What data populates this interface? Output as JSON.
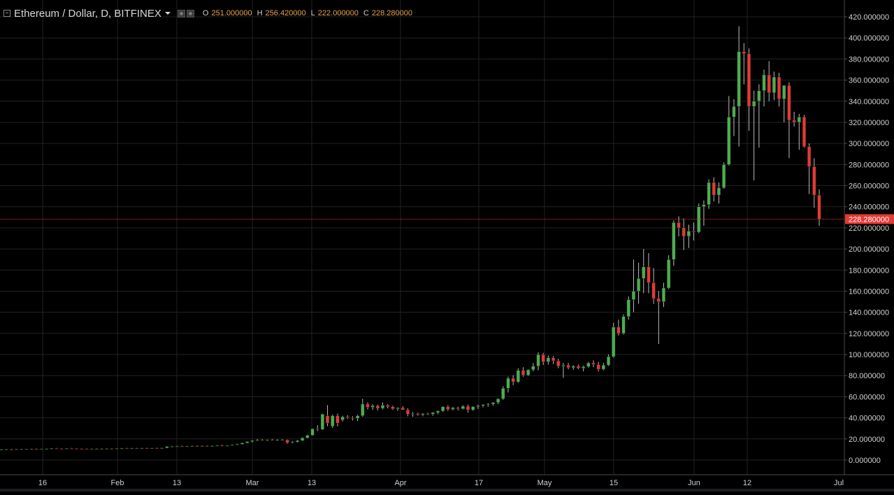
{
  "header": {
    "title": "Ethereum / Dollar, D, BITFINEX",
    "ohlc": [
      {
        "key": "O",
        "value": "251.000000"
      },
      {
        "key": "H",
        "value": "256.420000"
      },
      {
        "key": "L",
        "value": "222.000000"
      },
      {
        "key": "C",
        "value": "228.280000"
      }
    ]
  },
  "colors": {
    "background": "#000000",
    "up": "#4caf50",
    "down": "#e53935",
    "grid": "#222222",
    "axis_text": "#d0d0d0",
    "price_line": "#e53935"
  },
  "chart_data": {
    "type": "candlestick",
    "symbol": "Ethereum / Dollar",
    "interval": "D",
    "exchange": "BITFINEX",
    "x_tick_labels": [
      "16",
      "Feb",
      "13",
      "Mar",
      "13",
      "Apr",
      "17",
      "May",
      "15",
      "Jun",
      "12",
      "Jul"
    ],
    "y_tick_labels": [
      "0.000000",
      "20.000000",
      "40.000000",
      "60.000000",
      "80.000000",
      "100.000000",
      "120.000000",
      "140.000000",
      "160.000000",
      "180.000000",
      "200.000000",
      "220.000000",
      "240.000000",
      "260.000000",
      "280.000000",
      "300.000000",
      "320.000000",
      "340.000000",
      "360.000000",
      "380.000000",
      "400.000000",
      "420.000000"
    ],
    "ylim": [
      -20,
      430
    ],
    "grid": true,
    "last_price": 228.28,
    "last_price_label": "228.280000",
    "candles": [
      {
        "o": 10.0,
        "h": 10.4,
        "l": 9.7,
        "c": 10.1
      },
      {
        "o": 10.1,
        "h": 10.5,
        "l": 9.8,
        "c": 10.2
      },
      {
        "o": 10.2,
        "h": 10.6,
        "l": 9.9,
        "c": 10.0
      },
      {
        "o": 10.0,
        "h": 10.5,
        "l": 9.8,
        "c": 10.3
      },
      {
        "o": 10.3,
        "h": 10.7,
        "l": 10.0,
        "c": 10.2
      },
      {
        "o": 10.2,
        "h": 10.6,
        "l": 9.9,
        "c": 10.4
      },
      {
        "o": 10.4,
        "h": 10.8,
        "l": 10.1,
        "c": 10.5
      },
      {
        "o": 10.5,
        "h": 10.9,
        "l": 10.2,
        "c": 10.4
      },
      {
        "o": 10.4,
        "h": 10.8,
        "l": 10.1,
        "c": 10.6
      },
      {
        "o": 10.6,
        "h": 11.0,
        "l": 10.3,
        "c": 10.7
      },
      {
        "o": 10.7,
        "h": 11.3,
        "l": 10.4,
        "c": 11.0
      },
      {
        "o": 11.0,
        "h": 11.4,
        "l": 10.6,
        "c": 10.9
      },
      {
        "o": 10.9,
        "h": 11.3,
        "l": 10.6,
        "c": 10.8
      },
      {
        "o": 10.8,
        "h": 11.2,
        "l": 10.5,
        "c": 11.0
      },
      {
        "o": 11.0,
        "h": 11.4,
        "l": 10.7,
        "c": 10.9
      },
      {
        "o": 10.9,
        "h": 11.2,
        "l": 10.6,
        "c": 10.7
      },
      {
        "o": 10.7,
        "h": 11.1,
        "l": 10.4,
        "c": 10.6
      },
      {
        "o": 10.6,
        "h": 11.0,
        "l": 10.3,
        "c": 10.5
      },
      {
        "o": 10.5,
        "h": 10.9,
        "l": 10.2,
        "c": 10.7
      },
      {
        "o": 10.7,
        "h": 11.1,
        "l": 10.4,
        "c": 10.8
      },
      {
        "o": 10.8,
        "h": 11.2,
        "l": 10.5,
        "c": 10.7
      },
      {
        "o": 10.7,
        "h": 11.1,
        "l": 10.4,
        "c": 10.9
      },
      {
        "o": 10.9,
        "h": 11.3,
        "l": 10.6,
        "c": 10.8
      },
      {
        "o": 10.8,
        "h": 11.2,
        "l": 10.5,
        "c": 11.0
      },
      {
        "o": 11.0,
        "h": 11.4,
        "l": 10.7,
        "c": 11.1
      },
      {
        "o": 11.1,
        "h": 11.5,
        "l": 10.8,
        "c": 11.0
      },
      {
        "o": 11.0,
        "h": 11.4,
        "l": 10.7,
        "c": 11.2
      },
      {
        "o": 11.2,
        "h": 11.6,
        "l": 10.9,
        "c": 11.1
      },
      {
        "o": 11.1,
        "h": 11.5,
        "l": 10.8,
        "c": 11.3
      },
      {
        "o": 11.3,
        "h": 11.7,
        "l": 11.0,
        "c": 11.2
      },
      {
        "o": 11.2,
        "h": 11.6,
        "l": 10.9,
        "c": 11.4
      },
      {
        "o": 11.4,
        "h": 11.9,
        "l": 11.1,
        "c": 11.3
      },
      {
        "o": 11.3,
        "h": 11.8,
        "l": 11.0,
        "c": 11.5
      },
      {
        "o": 11.5,
        "h": 13.2,
        "l": 11.2,
        "c": 12.8
      },
      {
        "o": 12.8,
        "h": 13.4,
        "l": 12.3,
        "c": 12.9
      },
      {
        "o": 12.9,
        "h": 13.5,
        "l": 12.4,
        "c": 13.0
      },
      {
        "o": 13.0,
        "h": 13.6,
        "l": 12.5,
        "c": 12.9
      },
      {
        "o": 12.9,
        "h": 13.5,
        "l": 12.4,
        "c": 13.1
      },
      {
        "o": 13.1,
        "h": 13.7,
        "l": 12.6,
        "c": 13.3
      },
      {
        "o": 13.3,
        "h": 13.9,
        "l": 12.8,
        "c": 13.2
      },
      {
        "o": 13.2,
        "h": 13.8,
        "l": 12.7,
        "c": 13.4
      },
      {
        "o": 13.4,
        "h": 14.0,
        "l": 12.9,
        "c": 13.3
      },
      {
        "o": 13.3,
        "h": 13.9,
        "l": 12.8,
        "c": 13.5
      },
      {
        "o": 13.5,
        "h": 14.2,
        "l": 13.0,
        "c": 13.8
      },
      {
        "o": 13.8,
        "h": 14.5,
        "l": 13.2,
        "c": 13.6
      },
      {
        "o": 13.6,
        "h": 14.3,
        "l": 13.0,
        "c": 14.0
      },
      {
        "o": 14.0,
        "h": 14.8,
        "l": 13.5,
        "c": 14.5
      },
      {
        "o": 14.5,
        "h": 15.5,
        "l": 14.0,
        "c": 15.0
      },
      {
        "o": 15.0,
        "h": 16.5,
        "l": 14.6,
        "c": 16.2
      },
      {
        "o": 16.2,
        "h": 17.8,
        "l": 15.8,
        "c": 17.5
      },
      {
        "o": 17.5,
        "h": 19.0,
        "l": 16.8,
        "c": 18.5
      },
      {
        "o": 18.5,
        "h": 19.8,
        "l": 17.8,
        "c": 19.0
      },
      {
        "o": 19.0,
        "h": 19.8,
        "l": 18.2,
        "c": 18.7
      },
      {
        "o": 18.7,
        "h": 19.5,
        "l": 18.0,
        "c": 19.2
      },
      {
        "o": 19.2,
        "h": 20.0,
        "l": 18.5,
        "c": 18.8
      },
      {
        "o": 18.8,
        "h": 19.6,
        "l": 18.0,
        "c": 19.0
      },
      {
        "o": 19.0,
        "h": 19.8,
        "l": 18.2,
        "c": 18.5
      },
      {
        "o": 19.0,
        "h": 19.5,
        "l": 15.5,
        "c": 16.5
      },
      {
        "o": 16.5,
        "h": 17.8,
        "l": 15.8,
        "c": 17.2
      },
      {
        "o": 17.2,
        "h": 19.0,
        "l": 16.5,
        "c": 18.5
      },
      {
        "o": 18.5,
        "h": 21.5,
        "l": 18.0,
        "c": 21.0
      },
      {
        "o": 21.0,
        "h": 24.0,
        "l": 20.5,
        "c": 23.5
      },
      {
        "o": 23.5,
        "h": 30.0,
        "l": 23.0,
        "c": 29.5
      },
      {
        "o": 29.5,
        "h": 33.0,
        "l": 27.5,
        "c": 29.0
      },
      {
        "o": 29.0,
        "h": 44.0,
        "l": 28.5,
        "c": 43.5
      },
      {
        "o": 42.0,
        "h": 52.0,
        "l": 32.0,
        "c": 35.0
      },
      {
        "o": 32.0,
        "h": 43.0,
        "l": 30.5,
        "c": 42.0
      },
      {
        "o": 42.0,
        "h": 44.0,
        "l": 32.0,
        "c": 35.0
      },
      {
        "o": 38.0,
        "h": 42.0,
        "l": 36.5,
        "c": 41.0
      },
      {
        "o": 41.0,
        "h": 42.5,
        "l": 39.0,
        "c": 40.0
      },
      {
        "o": 40.0,
        "h": 41.5,
        "l": 37.5,
        "c": 39.5
      },
      {
        "o": 39.5,
        "h": 43.0,
        "l": 37.0,
        "c": 42.0
      },
      {
        "o": 42.0,
        "h": 58.0,
        "l": 41.0,
        "c": 53.0
      },
      {
        "o": 53.0,
        "h": 54.5,
        "l": 48.0,
        "c": 50.0
      },
      {
        "o": 50.0,
        "h": 53.0,
        "l": 47.5,
        "c": 51.5
      },
      {
        "o": 51.5,
        "h": 52.5,
        "l": 47.0,
        "c": 49.0
      },
      {
        "o": 49.0,
        "h": 54.5,
        "l": 48.0,
        "c": 52.0
      },
      {
        "o": 52.0,
        "h": 53.0,
        "l": 49.0,
        "c": 50.5
      },
      {
        "o": 50.5,
        "h": 51.5,
        "l": 47.5,
        "c": 48.5
      },
      {
        "o": 48.5,
        "h": 50.0,
        "l": 46.5,
        "c": 49.5
      },
      {
        "o": 49.5,
        "h": 51.0,
        "l": 48.0,
        "c": 47.5
      },
      {
        "o": 47.5,
        "h": 49.0,
        "l": 41.5,
        "c": 43.5
      },
      {
        "o": 43.5,
        "h": 45.5,
        "l": 41.0,
        "c": 44.0
      },
      {
        "o": 44.0,
        "h": 45.0,
        "l": 42.0,
        "c": 43.0
      },
      {
        "o": 43.0,
        "h": 44.5,
        "l": 41.5,
        "c": 44.0
      },
      {
        "o": 44.0,
        "h": 45.0,
        "l": 42.5,
        "c": 43.5
      },
      {
        "o": 43.5,
        "h": 45.5,
        "l": 42.0,
        "c": 45.0
      },
      {
        "o": 45.0,
        "h": 47.0,
        "l": 43.5,
        "c": 46.5
      },
      {
        "o": 46.5,
        "h": 51.0,
        "l": 45.5,
        "c": 50.5
      },
      {
        "o": 50.5,
        "h": 52.0,
        "l": 46.5,
        "c": 48.0
      },
      {
        "o": 48.0,
        "h": 50.5,
        "l": 47.0,
        "c": 49.5
      },
      {
        "o": 49.5,
        "h": 50.5,
        "l": 47.0,
        "c": 48.5
      },
      {
        "o": 48.5,
        "h": 52.0,
        "l": 48.0,
        "c": 51.0
      },
      {
        "o": 51.0,
        "h": 52.5,
        "l": 45.0,
        "c": 47.5
      },
      {
        "o": 47.5,
        "h": 51.0,
        "l": 46.5,
        "c": 50.5
      },
      {
        "o": 50.5,
        "h": 52.5,
        "l": 48.5,
        "c": 51.5
      },
      {
        "o": 51.5,
        "h": 53.0,
        "l": 50.0,
        "c": 52.5
      },
      {
        "o": 52.5,
        "h": 54.0,
        "l": 50.5,
        "c": 53.0
      },
      {
        "o": 53.0,
        "h": 55.0,
        "l": 51.5,
        "c": 54.5
      },
      {
        "o": 54.5,
        "h": 58.5,
        "l": 53.0,
        "c": 58.0
      },
      {
        "o": 58.0,
        "h": 70.0,
        "l": 57.0,
        "c": 68.0
      },
      {
        "o": 68.0,
        "h": 79.0,
        "l": 64.0,
        "c": 77.5
      },
      {
        "o": 77.5,
        "h": 80.5,
        "l": 71.0,
        "c": 74.0
      },
      {
        "o": 74.0,
        "h": 87.0,
        "l": 73.0,
        "c": 85.0
      },
      {
        "o": 85.0,
        "h": 88.0,
        "l": 79.0,
        "c": 80.5
      },
      {
        "o": 80.5,
        "h": 86.0,
        "l": 79.5,
        "c": 85.5
      },
      {
        "o": 85.5,
        "h": 92.0,
        "l": 84.0,
        "c": 89.0
      },
      {
        "o": 89.0,
        "h": 102.0,
        "l": 85.0,
        "c": 100.0
      },
      {
        "o": 100.0,
        "h": 101.5,
        "l": 90.0,
        "c": 93.0
      },
      {
        "o": 93.0,
        "h": 99.0,
        "l": 90.5,
        "c": 97.0
      },
      {
        "o": 97.0,
        "h": 98.5,
        "l": 91.0,
        "c": 94.0
      },
      {
        "o": 94.0,
        "h": 96.0,
        "l": 87.0,
        "c": 89.0
      },
      {
        "o": 89.0,
        "h": 92.0,
        "l": 78.0,
        "c": 90.0
      },
      {
        "o": 90.0,
        "h": 92.0,
        "l": 86.0,
        "c": 87.5
      },
      {
        "o": 87.5,
        "h": 90.0,
        "l": 85.5,
        "c": 89.0
      },
      {
        "o": 89.0,
        "h": 90.5,
        "l": 86.0,
        "c": 87.0
      },
      {
        "o": 87.0,
        "h": 89.5,
        "l": 84.0,
        "c": 88.5
      },
      {
        "o": 88.5,
        "h": 93.0,
        "l": 87.5,
        "c": 92.0
      },
      {
        "o": 92.0,
        "h": 94.5,
        "l": 88.0,
        "c": 90.5
      },
      {
        "o": 90.5,
        "h": 93.0,
        "l": 84.0,
        "c": 86.0
      },
      {
        "o": 86.0,
        "h": 92.0,
        "l": 85.0,
        "c": 90.0
      },
      {
        "o": 90.0,
        "h": 100.0,
        "l": 89.0,
        "c": 98.0
      },
      {
        "o": 98.0,
        "h": 130.0,
        "l": 97.0,
        "c": 126.0
      },
      {
        "o": 126.0,
        "h": 133.0,
        "l": 118.0,
        "c": 120.0
      },
      {
        "o": 120.0,
        "h": 138.0,
        "l": 119.0,
        "c": 136.0
      },
      {
        "o": 136.0,
        "h": 155.0,
        "l": 133.0,
        "c": 152.0
      },
      {
        "o": 152.0,
        "h": 190.0,
        "l": 140.0,
        "c": 160.0
      },
      {
        "o": 160.0,
        "h": 187.0,
        "l": 148.0,
        "c": 172.0
      },
      {
        "o": 172.0,
        "h": 200.0,
        "l": 158.0,
        "c": 183.0
      },
      {
        "o": 183.0,
        "h": 196.0,
        "l": 158.0,
        "c": 168.0
      },
      {
        "o": 168.0,
        "h": 182.0,
        "l": 148.0,
        "c": 153.0
      },
      {
        "o": 153.0,
        "h": 160.0,
        "l": 110.0,
        "c": 150.0
      },
      {
        "o": 150.0,
        "h": 168.0,
        "l": 145.0,
        "c": 163.0
      },
      {
        "o": 163.0,
        "h": 194.0,
        "l": 162.0,
        "c": 190.0
      },
      {
        "o": 190.0,
        "h": 227.0,
        "l": 184.0,
        "c": 225.0
      },
      {
        "o": 225.0,
        "h": 231.0,
        "l": 212.0,
        "c": 220.0
      },
      {
        "o": 220.0,
        "h": 229.0,
        "l": 199.0,
        "c": 212.0
      },
      {
        "o": 212.0,
        "h": 223.0,
        "l": 201.0,
        "c": 217.0
      },
      {
        "o": 217.0,
        "h": 225.0,
        "l": 208.0,
        "c": 216.0
      },
      {
        "o": 216.0,
        "h": 243.0,
        "l": 215.0,
        "c": 240.0
      },
      {
        "o": 240.0,
        "h": 246.0,
        "l": 222.0,
        "c": 242.0
      },
      {
        "o": 242.0,
        "h": 266.0,
        "l": 238.0,
        "c": 263.0
      },
      {
        "o": 263.0,
        "h": 268.0,
        "l": 245.0,
        "c": 251.0
      },
      {
        "o": 251.0,
        "h": 263.0,
        "l": 243.0,
        "c": 258.0
      },
      {
        "o": 258.0,
        "h": 282.0,
        "l": 257.0,
        "c": 280.0
      },
      {
        "o": 280.0,
        "h": 345.0,
        "l": 279.0,
        "c": 325.0
      },
      {
        "o": 325.0,
        "h": 342.0,
        "l": 307.0,
        "c": 335.0
      },
      {
        "o": 335.0,
        "h": 411.0,
        "l": 297.0,
        "c": 387.0
      },
      {
        "o": 387.0,
        "h": 395.0,
        "l": 356.0,
        "c": 385.0
      },
      {
        "o": 385.0,
        "h": 390.0,
        "l": 312.0,
        "c": 335.0
      },
      {
        "o": 335.0,
        "h": 350.0,
        "l": 265.0,
        "c": 340.0
      },
      {
        "o": 340.0,
        "h": 356.0,
        "l": 296.0,
        "c": 350.0
      },
      {
        "o": 350.0,
        "h": 370.0,
        "l": 335.0,
        "c": 365.0
      },
      {
        "o": 365.0,
        "h": 378.0,
        "l": 340.0,
        "c": 348.0
      },
      {
        "o": 348.0,
        "h": 368.0,
        "l": 341.0,
        "c": 363.0
      },
      {
        "o": 363.0,
        "h": 367.0,
        "l": 335.0,
        "c": 342.0
      },
      {
        "o": 342.0,
        "h": 352.0,
        "l": 320.0,
        "c": 355.0
      },
      {
        "o": 355.0,
        "h": 358.0,
        "l": 286.0,
        "c": 322.0
      },
      {
        "o": 322.0,
        "h": 330.0,
        "l": 316.0,
        "c": 320.0
      },
      {
        "o": 320.0,
        "h": 328.0,
        "l": 294.0,
        "c": 325.0
      },
      {
        "o": 325.0,
        "h": 327.0,
        "l": 296.0,
        "c": 297.0
      },
      {
        "o": 297.0,
        "h": 300.0,
        "l": 252.0,
        "c": 278.0
      },
      {
        "o": 278.0,
        "h": 286.0,
        "l": 239.0,
        "c": 251.0
      },
      {
        "o": 251.0,
        "h": 256.42,
        "l": 222.0,
        "c": 228.28
      }
    ]
  }
}
